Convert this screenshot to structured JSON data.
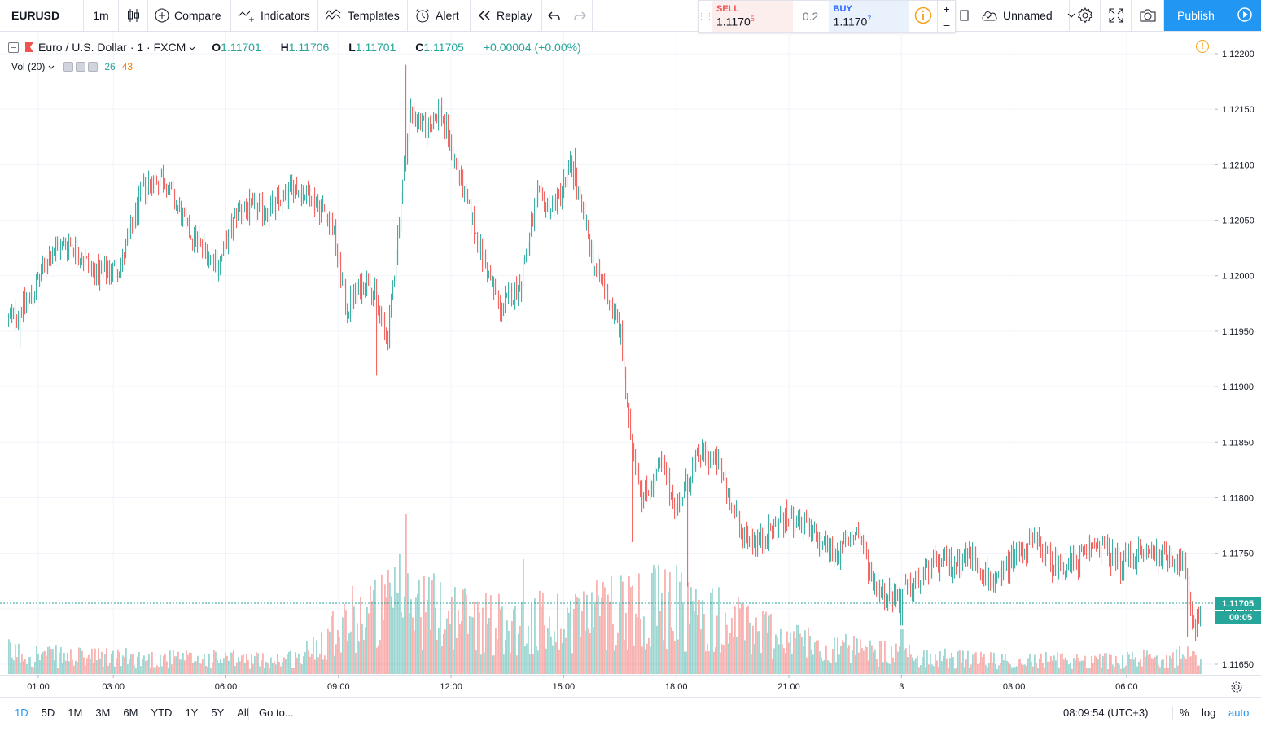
{
  "toolbar": {
    "symbol": "EURUSD",
    "interval": "1m",
    "compare": "Compare",
    "indicators": "Indicators",
    "templates": "Templates",
    "alert": "Alert",
    "replay": "Replay",
    "layout_name": "Unnamed",
    "publish": "Publish"
  },
  "trade_panel": {
    "sell_label": "SELL",
    "sell_price_main": "1.1170",
    "sell_price_pip": "5",
    "spread": "0.2",
    "buy_label": "BUY",
    "buy_price_main": "1.1170",
    "buy_price_pip": "7",
    "plus": "+",
    "minus": "–"
  },
  "legend": {
    "title": "Euro / U.S. Dollar · 1 · FXCM",
    "open_key": "O",
    "open": "1.11701",
    "high_key": "H",
    "high": "1.11706",
    "low_key": "L",
    "low": "1.11701",
    "close_key": "C",
    "close": "1.11705",
    "change": "+0.00004 (+0.00%)"
  },
  "volume_legend": {
    "label": "Vol (20)",
    "value_up": "26",
    "value_ma": "43"
  },
  "colors": {
    "up": "#26a69a",
    "down": "#ef5350",
    "accent": "#2196f3",
    "grid": "#f0f3fa",
    "price_label": "#26a69a"
  },
  "chart_data": {
    "type": "candlestick",
    "title": "Euro / U.S. Dollar · 1 · FXCM",
    "y_axis": {
      "ticks": [
        "1.12200",
        "1.12150",
        "1.12100",
        "1.12050",
        "1.12000",
        "1.11950",
        "1.11900",
        "1.11850",
        "1.11800",
        "1.11750",
        "1.11700",
        "1.11650"
      ],
      "ylim": [
        1.11645,
        1.12205
      ],
      "last_price": "1.11705",
      "countdown": "00:05"
    },
    "x_axis": {
      "ticks": [
        "01:00",
        "03:00",
        "06:00",
        "09:00",
        "12:00",
        "15:00",
        "18:00",
        "21:00",
        "3",
        "03:00",
        "06:00"
      ],
      "tick_hours": [
        1,
        3,
        6,
        9,
        12,
        15,
        18,
        21,
        24,
        27,
        30
      ]
    },
    "series": [
      {
        "kind": "price",
        "path_hours": [
          0.2,
          0.8,
          1.3,
          1.8,
          2.6,
          3.2,
          3.8,
          4.3,
          5.0,
          5.8,
          6.3,
          7.2,
          7.8,
          8.3,
          8.8,
          9.2,
          9.8,
          10.3,
          10.6,
          10.9,
          11.3,
          11.7,
          12.2,
          12.8,
          13.3,
          13.8,
          14.3,
          14.7,
          15.2,
          15.8,
          16.2,
          16.5,
          16.7,
          17.1,
          17.6,
          18.0,
          18.6,
          19.1,
          19.7,
          20.2,
          20.8,
          21.2,
          21.8,
          22.3,
          22.8,
          23.3,
          23.8,
          24.3,
          24.8,
          25.3,
          25.8,
          26.5,
          27.0,
          27.6,
          28.0,
          28.6,
          29.2,
          29.8,
          30.3,
          31.0,
          31.5,
          31.8,
          32.0
        ],
        "path_prices": [
          1.1196,
          1.1198,
          1.1202,
          1.1203,
          1.12,
          1.1201,
          1.1208,
          1.1209,
          1.1204,
          1.1201,
          1.1206,
          1.1206,
          1.1208,
          1.1207,
          1.1205,
          1.1197,
          1.12,
          1.1194,
          1.1205,
          1.1215,
          1.1213,
          1.1215,
          1.1209,
          1.1202,
          1.1197,
          1.1199,
          1.1207,
          1.1206,
          1.121,
          1.1201,
          1.1198,
          1.1195,
          1.1187,
          1.118,
          1.1183,
          1.1179,
          1.1184,
          1.1183,
          1.1177,
          1.1176,
          1.1178,
          1.1178,
          1.1176,
          1.1175,
          1.1177,
          1.1172,
          1.1171,
          1.1172,
          1.1174,
          1.1174,
          1.1175,
          1.1172,
          1.1175,
          1.1176,
          1.1174,
          1.1174,
          1.1176,
          1.1174,
          1.1175,
          1.1175,
          1.1174,
          1.1168,
          1.11705
        ],
        "extremes": [
          {
            "hour": 0.5,
            "price": 1.11935
          },
          {
            "hour": 10.8,
            "price": 1.1219
          },
          {
            "hour": 10.0,
            "price": 1.1191
          },
          {
            "hour": 15.3,
            "price": 1.12115
          },
          {
            "hour": 16.8,
            "price": 1.1176
          },
          {
            "hour": 18.3,
            "price": 1.1172
          },
          {
            "hour": 24.0,
            "price": 1.11685
          },
          {
            "hour": 31.6,
            "price": 1.11675
          }
        ]
      },
      {
        "kind": "volume",
        "profile_hours": [
          0,
          1,
          2,
          3,
          4,
          5,
          6,
          7,
          8,
          9,
          10,
          11,
          12,
          13,
          14,
          15,
          16,
          17,
          18,
          19,
          20,
          21,
          22,
          23,
          24,
          25,
          26,
          27,
          28,
          29,
          30,
          31,
          32
        ],
        "profile_levels": [
          0.16,
          0.14,
          0.12,
          0.12,
          0.11,
          0.11,
          0.11,
          0.1,
          0.12,
          0.38,
          0.46,
          0.52,
          0.44,
          0.38,
          0.36,
          0.4,
          0.46,
          0.5,
          0.48,
          0.4,
          0.34,
          0.26,
          0.2,
          0.16,
          0.14,
          0.12,
          0.1,
          0.1,
          0.1,
          0.1,
          0.1,
          0.12,
          0.14
        ],
        "peaks": [
          {
            "hour": 10.8,
            "level": 1.0
          },
          {
            "hour": 10.6,
            "level": 0.75
          },
          {
            "hour": 13.9,
            "level": 0.72
          },
          {
            "hour": 16.5,
            "level": 0.62
          },
          {
            "hour": 18.0,
            "level": 0.68
          },
          {
            "hour": 15.3,
            "level": 0.5
          },
          {
            "hour": 24.0,
            "level": 0.28
          }
        ]
      }
    ]
  },
  "bottom_bar": {
    "ranges": [
      "1D",
      "5D",
      "1M",
      "3M",
      "6M",
      "YTD",
      "1Y",
      "5Y",
      "All"
    ],
    "active_range": "1D",
    "goto": "Go to...",
    "clock": "08:09:54 (UTC+3)",
    "percent": "%",
    "log": "log",
    "auto": "auto"
  }
}
